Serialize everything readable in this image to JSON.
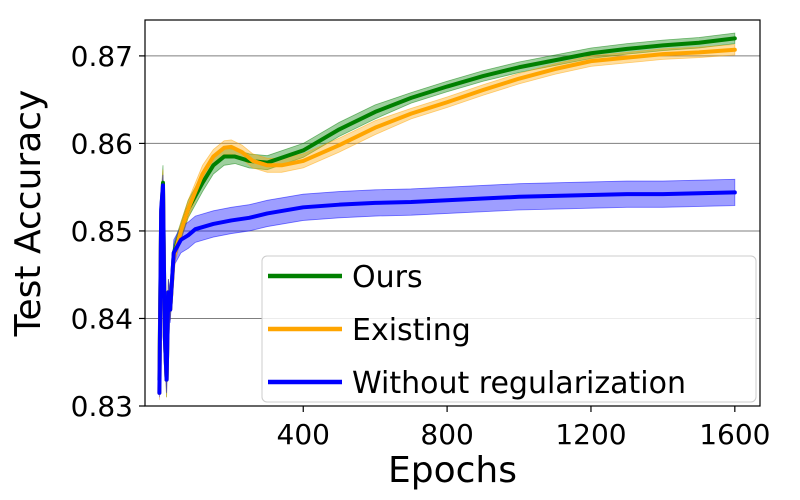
{
  "chart_data": {
    "type": "line",
    "xlabel": "Epochs",
    "ylabel": "Test Accuracy",
    "xlim": [
      -40,
      1670
    ],
    "ylim": [
      0.83,
      0.8741
    ],
    "xticks": [
      400,
      800,
      1200,
      1600
    ],
    "xtick_labels": [
      "400",
      "800",
      "1200",
      "1600"
    ],
    "yticks": [
      0.83,
      0.84,
      0.85,
      0.86,
      0.87
    ],
    "ytick_labels": [
      "0.83",
      "0.84",
      "0.85",
      "0.86",
      "0.87"
    ],
    "grid": "horizontal",
    "legend_position": "lower-right",
    "series": [
      {
        "name": "Ours",
        "color": "#008000",
        "x": [
          0,
          5,
          10,
          15,
          20,
          25,
          30,
          40,
          60,
          80,
          100,
          120,
          150,
          180,
          210,
          250,
          300,
          350,
          400,
          500,
          600,
          700,
          800,
          900,
          1000,
          1100,
          1200,
          1300,
          1400,
          1500,
          1600
        ],
        "y": [
          0.833,
          0.852,
          0.8555,
          0.838,
          0.833,
          0.843,
          0.841,
          0.8475,
          0.85,
          0.8525,
          0.854,
          0.8555,
          0.8575,
          0.8585,
          0.8585,
          0.858,
          0.8578,
          0.8585,
          0.8592,
          0.8616,
          0.8636,
          0.8652,
          0.8665,
          0.8677,
          0.8687,
          0.8695,
          0.8703,
          0.8708,
          0.8712,
          0.8715,
          0.872
        ],
        "band": [
          0.0008,
          0.002,
          0.002,
          0.002,
          0.002,
          0.0015,
          0.0012,
          0.001,
          0.001,
          0.001,
          0.001,
          0.001,
          0.001,
          0.001,
          0.0008,
          0.0008,
          0.0008,
          0.0008,
          0.0008,
          0.0008,
          0.0008,
          0.0006,
          0.0006,
          0.0006,
          0.0006,
          0.0006,
          0.0006,
          0.0006,
          0.0006,
          0.0006,
          0.0006
        ]
      },
      {
        "name": "Existing",
        "color": "#FFA500",
        "x": [
          0,
          5,
          10,
          15,
          20,
          25,
          30,
          40,
          60,
          80,
          100,
          120,
          150,
          180,
          200,
          230,
          260,
          300,
          340,
          400,
          500,
          600,
          700,
          800,
          900,
          1000,
          1100,
          1200,
          1300,
          1400,
          1500,
          1600
        ],
        "y": [
          0.8315,
          0.852,
          0.855,
          0.838,
          0.833,
          0.843,
          0.841,
          0.847,
          0.85,
          0.8525,
          0.8545,
          0.8565,
          0.8585,
          0.8595,
          0.8596,
          0.859,
          0.858,
          0.8575,
          0.8575,
          0.858,
          0.8598,
          0.8618,
          0.8634,
          0.8647,
          0.8661,
          0.8674,
          0.8685,
          0.8694,
          0.8698,
          0.8702,
          0.8704,
          0.8707
        ],
        "band": [
          0.0008,
          0.002,
          0.002,
          0.002,
          0.002,
          0.0015,
          0.0012,
          0.001,
          0.001,
          0.001,
          0.001,
          0.001,
          0.0008,
          0.0008,
          0.0008,
          0.0008,
          0.0008,
          0.0008,
          0.0008,
          0.0008,
          0.0008,
          0.0008,
          0.0006,
          0.0006,
          0.0006,
          0.0006,
          0.0006,
          0.0006,
          0.0006,
          0.0006,
          0.0006,
          0.0006
        ]
      },
      {
        "name": "Without regularization",
        "color": "#0000FF",
        "x": [
          0,
          5,
          10,
          15,
          20,
          25,
          30,
          40,
          60,
          80,
          100,
          150,
          200,
          250,
          300,
          400,
          500,
          600,
          700,
          800,
          900,
          1000,
          1100,
          1200,
          1300,
          1400,
          1500,
          1600
        ],
        "y": [
          0.8315,
          0.8525,
          0.8552,
          0.838,
          0.833,
          0.843,
          0.841,
          0.8475,
          0.849,
          0.8495,
          0.8502,
          0.8508,
          0.8512,
          0.8515,
          0.852,
          0.8527,
          0.853,
          0.8532,
          0.8533,
          0.8535,
          0.8537,
          0.8539,
          0.854,
          0.8541,
          0.8542,
          0.8542,
          0.8543,
          0.8544
        ],
        "band": [
          0.0005,
          0.001,
          0.0012,
          0.0015,
          0.0015,
          0.0015,
          0.0015,
          0.0015,
          0.0015,
          0.0015,
          0.0015,
          0.0015,
          0.0015,
          0.0015,
          0.0015,
          0.0015,
          0.0015,
          0.0015,
          0.0015,
          0.0015,
          0.0015,
          0.0015,
          0.0015,
          0.0015,
          0.0015,
          0.0015,
          0.0015,
          0.0015
        ]
      }
    ]
  }
}
